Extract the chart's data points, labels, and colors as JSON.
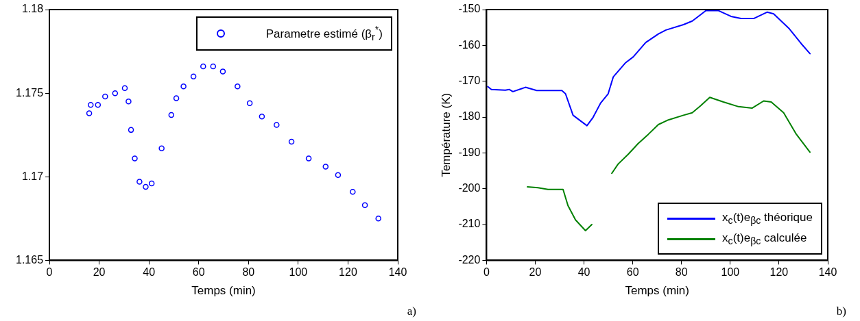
{
  "chart_data": [
    {
      "type": "scatter",
      "xlabel": "Temps (min)",
      "xlim": [
        0,
        140
      ],
      "xticks": [
        0,
        20,
        40,
        60,
        80,
        100,
        120,
        140
      ],
      "ylim": [
        1.165,
        1.18
      ],
      "yticks": [
        1.165,
        1.17,
        1.175,
        1.18
      ],
      "legend": "top right",
      "marker": "circle",
      "annotations": [
        "a)"
      ],
      "series": [
        {
          "name": "Parametre estimé (β$_{r}$$^{*}$)",
          "color": "#0000ff",
          "x": [
            16.0,
            16.6,
            19.5,
            22.4,
            26.4,
            30.3,
            31.8,
            32.8,
            34.3,
            36.2,
            38.7,
            41.1,
            45.1,
            49.0,
            51.0,
            53.9,
            57.9,
            61.8,
            65.8,
            69.7,
            75.6,
            80.5,
            85.4,
            91.3,
            97.3,
            104.2,
            111.0,
            116.0,
            121.9,
            126.8,
            132.2
          ],
          "values": [
            1.1738,
            1.1743,
            1.1743,
            1.1748,
            1.175,
            1.1753,
            1.1745,
            1.1728,
            1.1711,
            1.1697,
            1.1694,
            1.1696,
            1.1717,
            1.1737,
            1.1747,
            1.1754,
            1.176,
            1.1766,
            1.1766,
            1.1763,
            1.1754,
            1.1744,
            1.1736,
            1.1731,
            1.1721,
            1.1711,
            1.1706,
            1.1701,
            1.1691,
            1.1683,
            1.1675
          ]
        }
      ]
    },
    {
      "type": "line",
      "xlabel": "Temps (min)",
      "ylabel": "Température (K)",
      "xlim": [
        0,
        140
      ],
      "xticks": [
        0,
        20,
        40,
        60,
        80,
        100,
        120,
        140
      ],
      "ylim": [
        -220,
        -150
      ],
      "yticks": [
        -220,
        -210,
        -200,
        -190,
        -180,
        -170,
        -160,
        -150
      ],
      "legend": "bottom right",
      "line_style": "solid",
      "annotations": [
        "b)"
      ],
      "series": [
        {
          "name": "x$_{c}$(t)e$_{βc}$ théorique",
          "color": "#0000ff",
          "x": [
            0.5,
            2,
            7.7,
            9.3,
            10.8,
            16,
            20.6,
            30.9,
            32.4,
            35.5,
            41.2,
            43.7,
            46.8,
            49.9,
            52,
            57.1,
            60.2,
            65.3,
            70.5,
            73.6,
            80.8,
            84.4,
            86.9,
            90,
            95.2,
            100.3,
            104.4,
            109.6,
            115.2,
            117.8,
            124,
            129.1,
            132.7
          ],
          "values": [
            -171.5,
            -172.3,
            -172.5,
            -172.3,
            -172.9,
            -171.7,
            -172.6,
            -172.6,
            -173.5,
            -179.5,
            -182.4,
            -180.1,
            -176.1,
            -173.5,
            -168.8,
            -164.8,
            -163.2,
            -159.2,
            -156.8,
            -155.7,
            -154.2,
            -153.2,
            -151.9,
            -150.3,
            -150.3,
            -151.9,
            -152.5,
            -152.5,
            -150.7,
            -151.2,
            -155.2,
            -159.5,
            -162.3
          ]
        },
        {
          "name": "x$_{c}$(t)e$_{βc}$ calculée",
          "color": "#008000",
          "x": [
            16.8,
            21.1,
            25.2,
            31.4,
            33.4,
            36.5,
            40.6,
            43.2,
            47,
            51.4,
            54,
            58.1,
            62.2,
            66.4,
            70.5,
            74.6,
            80.8,
            84.4,
            87.9,
            91.6,
            97.2,
            103.4,
            109,
            113.7,
            116.8,
            121.9,
            127.1,
            132.7
          ],
          "values": [
            -199.5,
            -199.7,
            -200.2,
            -200.2,
            -204.7,
            -208.7,
            -211.7,
            -210,
            null,
            -195.7,
            -193.1,
            -190.4,
            -187.4,
            -184.8,
            -182.1,
            -180.8,
            -179.5,
            -178.8,
            -176.8,
            -174.5,
            -175.8,
            -177.1,
            -177.5,
            -175.5,
            -175.8,
            -178.8,
            -184.8,
            -189.8
          ]
        }
      ]
    }
  ]
}
